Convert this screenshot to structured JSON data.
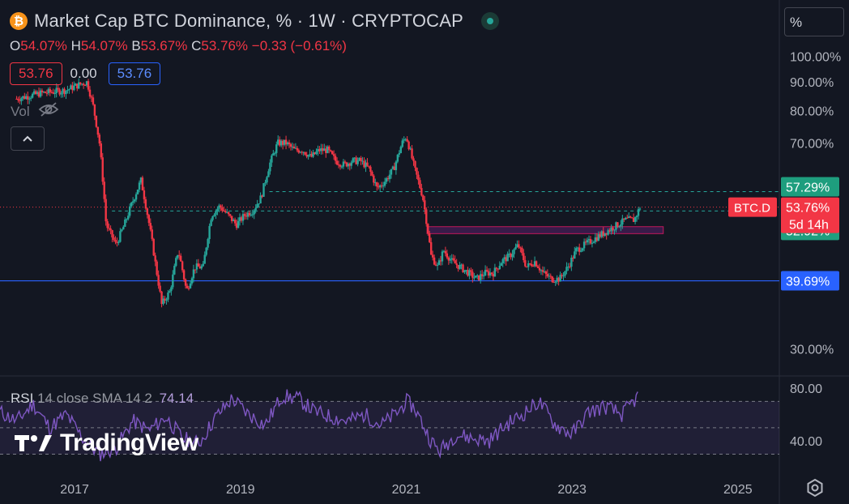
{
  "header": {
    "coin_symbol": "₿",
    "title": "Market Cap BTC Dominance, % · 1W · CRYPTOCAP",
    "ohlc": {
      "o_label": "O",
      "o": "54.07%",
      "h_label": "H",
      "h": "54.07%",
      "l_label": "B",
      "l": "53.67%",
      "c_label": "C",
      "c": "53.76%",
      "change": "−0.33 (−0.61%)"
    },
    "bid": "53.76",
    "spread": "0.00",
    "ask": "53.76",
    "volume_label": "Vol",
    "scale_mode": "%"
  },
  "rsi": {
    "name": "RSI",
    "params": "14 close SMA 14 2",
    "value": "74.14"
  },
  "brand": "TradingView",
  "colors": {
    "up": "#26a69a",
    "down": "#f23645",
    "rsi": "#7e57c2",
    "blue_line": "#2962ff"
  },
  "chart_data": [
    {
      "type": "candlestick",
      "title": "Market Cap BTC Dominance, % · 1W · CRYPTOCAP",
      "y_scale": "log",
      "ylim": [
        27,
        105
      ],
      "xlim": [
        2016.1,
        2025.5
      ],
      "y_ticks": [
        "100.00%",
        "90.00%",
        "80.00%",
        "70.00%",
        "30.00%"
      ],
      "x_ticks": [
        "2017",
        "2019",
        "2021",
        "2023",
        "2025"
      ],
      "series": [
        {
          "x": [
            2016.3,
            2016.6,
            2016.9,
            2017.05,
            2017.15,
            2017.22,
            2017.3,
            2017.38,
            2017.5,
            2017.6,
            2017.7,
            2017.8,
            2017.9,
            2017.98,
            2018.05,
            2018.15,
            2018.25,
            2018.35,
            2018.45,
            2018.55,
            2018.65,
            2018.75,
            2018.85,
            2018.95,
            2019.05,
            2019.15,
            2019.25,
            2019.35,
            2019.45,
            2019.55,
            2019.65,
            2019.75,
            2019.85,
            2019.95,
            2020.05,
            2020.15,
            2020.25,
            2020.35,
            2020.45,
            2020.55,
            2020.65,
            2020.75,
            2020.85,
            2020.95,
            2021.0,
            2021.1,
            2021.2,
            2021.3,
            2021.38,
            2021.45,
            2021.55,
            2021.65,
            2021.75,
            2021.85,
            2021.95,
            2022.05,
            2022.15,
            2022.25,
            2022.35,
            2022.45,
            2022.55,
            2022.65,
            2022.75,
            2022.85,
            2022.95,
            2023.05,
            2023.15,
            2023.25,
            2023.35,
            2023.45,
            2023.55,
            2023.65,
            2023.75,
            2023.82
          ],
          "y": [
            84,
            86,
            87,
            89,
            90,
            82,
            70,
            50,
            46,
            50,
            55,
            60,
            50,
            42,
            36,
            38,
            45,
            38,
            42,
            42,
            52,
            54,
            52,
            50,
            52,
            53,
            56,
            64,
            70,
            70,
            68,
            68,
            66,
            68,
            68,
            65,
            64,
            65,
            65,
            63,
            58,
            60,
            63,
            70,
            72,
            63,
            56,
            44,
            42,
            45,
            43,
            42,
            41,
            40,
            41,
            41,
            43,
            44,
            46,
            42,
            43,
            41,
            40,
            40,
            42,
            45,
            46,
            47,
            48,
            49,
            50,
            51,
            51,
            53.76
          ]
        }
      ],
      "price_labels": [
        "57.29%",
        "53.76%",
        "52.92%",
        "39.69%"
      ],
      "symbol_tag": "BTC.D",
      "countdown": "5d 14h",
      "levels": [
        57.29,
        52.92,
        39.69
      ],
      "current": 53.76,
      "zone": [
        48.2,
        49.6
      ]
    },
    {
      "type": "line",
      "title": "RSI",
      "ylim": [
        18,
        88
      ],
      "y_ticks": [
        "80.00",
        "40.00"
      ],
      "bands": [
        30,
        70
      ],
      "series": [
        {
          "name": "RSI",
          "x": [
            2016.1,
            2016.3,
            2016.5,
            2016.7,
            2016.9,
            2017.1,
            2017.3,
            2017.5,
            2017.7,
            2017.9,
            2018.1,
            2018.3,
            2018.5,
            2018.7,
            2018.9,
            2019.1,
            2019.3,
            2019.5,
            2019.7,
            2019.9,
            2020.1,
            2020.3,
            2020.5,
            2020.7,
            2020.9,
            2021.0,
            2021.1,
            2021.3,
            2021.4,
            2021.6,
            2021.8,
            2022.0,
            2022.2,
            2022.4,
            2022.6,
            2022.8,
            2023.0,
            2023.2,
            2023.4,
            2023.6,
            2023.8
          ],
          "values": [
            62,
            55,
            68,
            50,
            60,
            42,
            30,
            35,
            55,
            48,
            58,
            42,
            38,
            58,
            72,
            60,
            52,
            74,
            72,
            62,
            58,
            55,
            60,
            52,
            62,
            70,
            65,
            40,
            32,
            45,
            42,
            40,
            52,
            60,
            70,
            52,
            45,
            62,
            66,
            60,
            74
          ]
        }
      ]
    }
  ]
}
